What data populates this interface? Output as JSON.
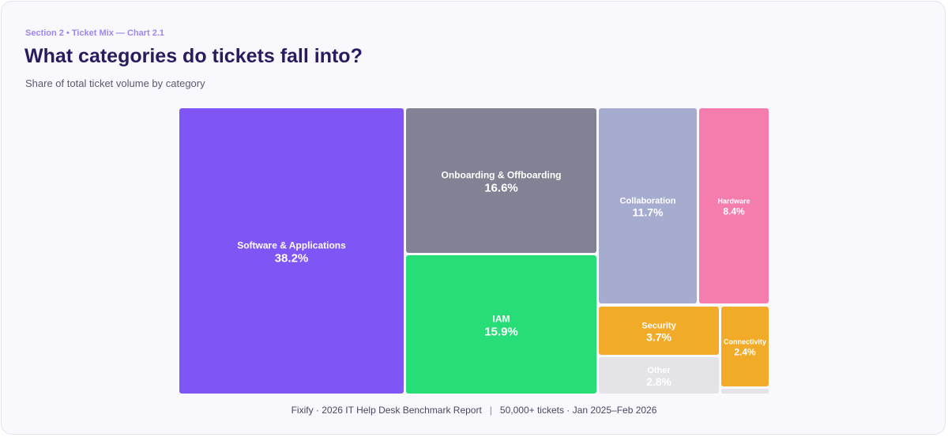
{
  "header": {
    "eyebrow": "Section 2 • Ticket Mix — Chart 2.1",
    "title": "What categories do tickets fall into?",
    "subtitle": "Share of total ticket volume by category"
  },
  "chart_data": {
    "type": "treemap",
    "unit": "%",
    "categories": [
      "Software & Applications",
      "Onboarding & Offboarding",
      "IAM",
      "Collaboration",
      "Hardware",
      "Security",
      "Connectivity",
      "Other"
    ],
    "values": [
      38.2,
      16.6,
      15.9,
      11.7,
      8.4,
      3.7,
      2.4,
      2.8
    ],
    "colors": [
      "#7f55f6",
      "#818395",
      "#26dd78",
      "#a6acd0",
      "#f47dae",
      "#f1ab28",
      "#f1ab28",
      "#e4e4e8"
    ],
    "label_colors": [
      "#ffffff",
      "#ffffff",
      "#ffffff",
      "#ffffff",
      "#ffffff",
      "#ffffff",
      "#ffffff",
      "#ffffff"
    ]
  },
  "footer": {
    "source": "Fixify · 2026 IT Help Desk Benchmark Report",
    "meta": "50,000+ tickets · Jan 2025–Feb 2026"
  }
}
